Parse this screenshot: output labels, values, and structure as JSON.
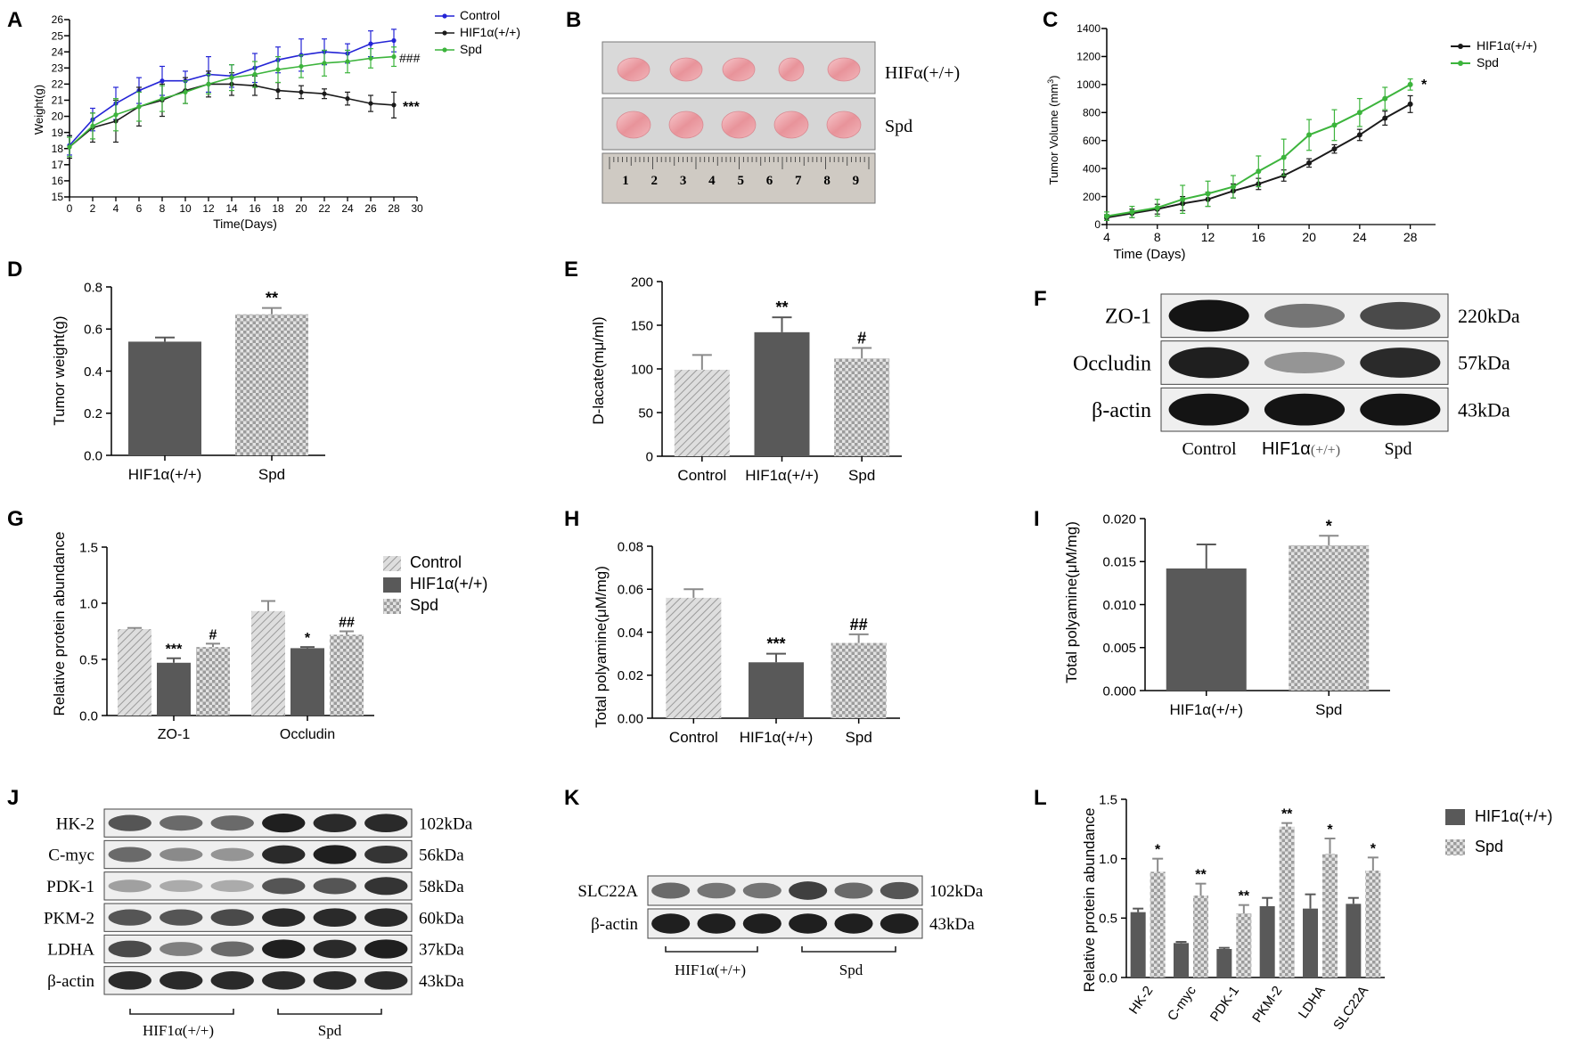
{
  "colors": {
    "blue": "#2424d6",
    "black": "#1a1a1a",
    "green": "#3cb43c",
    "dark_bar": "#595959",
    "light_bar": "#d0d0d0"
  },
  "panel_labels": {
    "A": "A",
    "B": "B",
    "C": "C",
    "D": "D",
    "E": "E",
    "F": "F",
    "G": "G",
    "H": "H",
    "I": "I",
    "J": "J",
    "K": "K",
    "L": "L"
  },
  "chart_data": [
    {
      "panel": "A",
      "type": "line",
      "title": "",
      "xlabel": "Time(Days)",
      "ylabel": "Weight(g)",
      "xlim": [
        0,
        30
      ],
      "ylim": [
        15,
        26
      ],
      "xticks": [
        "0",
        "2",
        "4",
        "6",
        "8",
        "10",
        "12",
        "14",
        "16",
        "18",
        "20",
        "22",
        "24",
        "26",
        "28",
        "30"
      ],
      "yticks": [
        "15",
        "16",
        "17",
        "18",
        "19",
        "20",
        "21",
        "22",
        "23",
        "24",
        "25",
        "26"
      ],
      "x": [
        0,
        2,
        4,
        6,
        8,
        10,
        12,
        14,
        16,
        18,
        20,
        22,
        24,
        26,
        28
      ],
      "series": [
        {
          "name": "Control",
          "color": "#2424d6",
          "values": [
            18.2,
            19.8,
            20.8,
            21.6,
            22.2,
            22.2,
            22.6,
            22.5,
            23.0,
            23.5,
            23.8,
            24.0,
            23.9,
            24.5,
            24.7
          ],
          "errors": [
            0.6,
            0.7,
            1.0,
            0.8,
            0.9,
            0.6,
            1.1,
            0.7,
            0.9,
            0.8,
            1.0,
            0.8,
            0.6,
            0.8,
            0.7
          ]
        },
        {
          "name": "HIF1α(+/+)",
          "color": "#1a1a1a",
          "values": [
            18.1,
            19.3,
            19.7,
            20.6,
            21.0,
            21.6,
            22.0,
            22.0,
            21.9,
            21.6,
            21.5,
            21.4,
            21.1,
            20.8,
            20.7
          ],
          "errors": [
            0.7,
            0.9,
            1.3,
            1.2,
            1.0,
            0.8,
            0.8,
            0.7,
            0.6,
            0.5,
            0.4,
            0.3,
            0.4,
            0.5,
            0.8
          ]
        },
        {
          "name": "Spd",
          "color": "#3cb43c",
          "values": [
            18.1,
            19.4,
            20.1,
            20.6,
            21.1,
            21.5,
            22.0,
            22.4,
            22.6,
            22.9,
            23.1,
            23.3,
            23.4,
            23.6,
            23.7
          ],
          "errors": [
            0.6,
            0.8,
            1.0,
            0.9,
            0.8,
            0.7,
            0.6,
            0.8,
            0.8,
            0.8,
            0.7,
            0.8,
            0.7,
            0.6,
            0.6
          ]
        }
      ],
      "annotations": [
        "###",
        "***"
      ]
    },
    {
      "panel": "C",
      "type": "line",
      "xlabel": "Time (Days)",
      "ylabel": "Tumor Volume (mm",
      "ylabel_sup": "3",
      "ylabel_end": ")",
      "xlim": [
        4,
        30
      ],
      "ylim": [
        0,
        1400
      ],
      "xticks": [
        "4",
        "8",
        "12",
        "16",
        "20",
        "24",
        "28"
      ],
      "yticks": [
        "0",
        "200",
        "400",
        "600",
        "800",
        "1000",
        "1200",
        "1400"
      ],
      "x": [
        4,
        6,
        8,
        10,
        12,
        14,
        16,
        18,
        20,
        22,
        24,
        26,
        28
      ],
      "series": [
        {
          "name": "HIF1α(+/+)",
          "color": "#1a1a1a",
          "values": [
            50,
            80,
            110,
            150,
            180,
            240,
            290,
            350,
            440,
            540,
            640,
            760,
            860
          ],
          "errors": [
            20,
            30,
            35,
            50,
            50,
            50,
            40,
            40,
            30,
            30,
            40,
            50,
            60
          ]
        },
        {
          "name": "Spd",
          "color": "#3cb43c",
          "values": [
            60,
            90,
            120,
            180,
            220,
            270,
            380,
            480,
            640,
            710,
            800,
            900,
            1000
          ],
          "errors": [
            30,
            40,
            60,
            100,
            90,
            80,
            110,
            130,
            110,
            110,
            100,
            80,
            40
          ]
        }
      ],
      "annotations": [
        "*"
      ]
    },
    {
      "panel": "D",
      "type": "bar",
      "ylabel": "Tumor weight(g)",
      "ylim": [
        0,
        0.8
      ],
      "yticks": [
        "0.0",
        "0.2",
        "0.4",
        "0.6",
        "0.8"
      ],
      "categories": [
        "HIF1α(+/+)",
        "Spd"
      ],
      "values": [
        0.54,
        0.67
      ],
      "errors": [
        0.02,
        0.03
      ],
      "annotations": [
        "",
        "**"
      ]
    },
    {
      "panel": "E",
      "type": "bar",
      "ylabel": "D-lacate(mμ/ml)",
      "ylim": [
        0,
        200
      ],
      "yticks": [
        "0",
        "50",
        "100",
        "150",
        "200"
      ],
      "categories": [
        "Control",
        "HIF1α(+/+)",
        "Spd"
      ],
      "values": [
        99,
        142,
        112
      ],
      "errors": [
        17,
        17,
        12
      ],
      "annotations": [
        "",
        "**",
        "#"
      ]
    },
    {
      "panel": "G",
      "type": "bar",
      "ylabel": "Relative protein abundance",
      "ylim": [
        0,
        1.5
      ],
      "yticks": [
        "0.0",
        "0.5",
        "1.0",
        "1.5"
      ],
      "categories": [
        "ZO-1",
        "Occludin"
      ],
      "legend": [
        "Control",
        "HIF1α(+/+)",
        "Spd"
      ],
      "series": [
        {
          "name": "Control",
          "values": [
            0.77,
            0.93
          ],
          "errors": [
            0.01,
            0.09
          ]
        },
        {
          "name": "HIF1α(+/+)",
          "values": [
            0.47,
            0.6
          ],
          "errors": [
            0.04,
            0.01
          ]
        },
        {
          "name": "Spd",
          "values": [
            0.61,
            0.72
          ],
          "errors": [
            0.03,
            0.03
          ]
        }
      ],
      "annotations": [
        [
          "",
          "***",
          "#"
        ],
        [
          "",
          "*",
          "##"
        ]
      ]
    },
    {
      "panel": "H",
      "type": "bar",
      "ylabel": "Total polyamine(μM/mg)",
      "ylim": [
        0,
        0.08
      ],
      "yticks": [
        "0.00",
        "0.02",
        "0.04",
        "0.06",
        "0.08"
      ],
      "categories": [
        "Control",
        "HIF1α(+/+)",
        "Spd"
      ],
      "values": [
        0.056,
        0.026,
        0.035
      ],
      "errors": [
        0.004,
        0.004,
        0.004
      ],
      "annotations": [
        "",
        "***",
        "##"
      ]
    },
    {
      "panel": "I",
      "type": "bar",
      "ylabel": "Total polyamine(μM/mg)",
      "ylim": [
        0,
        0.02
      ],
      "yticks": [
        "0.000",
        "0.005",
        "0.010",
        "0.015",
        "0.020"
      ],
      "categories": [
        "HIF1α(+/+)",
        "Spd"
      ],
      "values": [
        0.0142,
        0.0169
      ],
      "errors": [
        0.0028,
        0.0011
      ],
      "annotations": [
        "",
        "*"
      ]
    },
    {
      "panel": "L",
      "type": "bar",
      "ylabel": "Relative protein abundance",
      "ylim": [
        0,
        1.5
      ],
      "yticks": [
        "0.0",
        "0.5",
        "1.0",
        "1.5"
      ],
      "categories": [
        "HK-2",
        "C-myc",
        "PDK-1",
        "PKM-2",
        "LDHA",
        "SLC22A"
      ],
      "legend": [
        "HIF1α(+/+)",
        "Spd"
      ],
      "series": [
        {
          "name": "HIF1α(+/+)",
          "values": [
            0.55,
            0.29,
            0.24,
            0.6,
            0.58,
            0.62
          ],
          "errors": [
            0.03,
            0.01,
            0.01,
            0.07,
            0.12,
            0.05
          ]
        },
        {
          "name": "Spd",
          "values": [
            0.89,
            0.69,
            0.54,
            1.27,
            1.04,
            0.9
          ],
          "errors": [
            0.11,
            0.1,
            0.07,
            0.03,
            0.13,
            0.11
          ]
        }
      ],
      "annotations": [
        "*",
        "**",
        "**",
        "**",
        "*",
        "*"
      ]
    }
  ],
  "blots": {
    "B": {
      "rows": [
        "HIFα(+/+)",
        "Spd"
      ],
      "ruler_numbers": [
        "1",
        "2",
        "3",
        "4",
        "5",
        "6",
        "7",
        "8",
        "9"
      ]
    },
    "F": {
      "rows": [
        {
          "label": "ZO-1",
          "kda": "220kDa",
          "intensity": [
            1.0,
            0.55,
            0.75
          ]
        },
        {
          "label": "Occludin",
          "kda": "57kDa",
          "intensity": [
            0.95,
            0.4,
            0.9
          ]
        },
        {
          "label": "β-actin",
          "kda": "43kDa",
          "intensity": [
            1.0,
            1.0,
            1.0
          ]
        }
      ],
      "lanes_label_1": "Control",
      "lanes_label_2a": "HIF1α",
      "lanes_label_2b": "(+/+)",
      "lanes_label_3": "Spd"
    },
    "J": {
      "rows": [
        {
          "label": "HK-2",
          "kda": "102kDa",
          "intensity": [
            0.7,
            0.6,
            0.6,
            0.95,
            0.9,
            0.9
          ]
        },
        {
          "label": "C-myc",
          "kda": "56kDa",
          "intensity": [
            0.6,
            0.45,
            0.4,
            0.9,
            0.95,
            0.85
          ]
        },
        {
          "label": "PDK-1",
          "kda": "58kDa",
          "intensity": [
            0.35,
            0.3,
            0.3,
            0.7,
            0.7,
            0.85
          ]
        },
        {
          "label": "PKM-2",
          "kda": "60kDa",
          "intensity": [
            0.7,
            0.7,
            0.75,
            0.9,
            0.9,
            0.9
          ]
        },
        {
          "label": "LDHA",
          "kda": "37kDa",
          "intensity": [
            0.75,
            0.5,
            0.6,
            0.95,
            0.9,
            0.95
          ]
        },
        {
          "label": "β-actin",
          "kda": "43kDa",
          "intensity": [
            0.9,
            0.9,
            0.9,
            0.9,
            0.9,
            0.9
          ]
        }
      ],
      "group1": "HIF1α(+/+)",
      "group2": "Spd"
    },
    "K": {
      "rows": [
        {
          "label": "SLC22A",
          "kda": "102kDa",
          "intensity": [
            0.6,
            0.55,
            0.55,
            0.8,
            0.6,
            0.7
          ]
        },
        {
          "label": "β-actin",
          "kda": "43kDa",
          "intensity": [
            0.95,
            0.95,
            0.95,
            0.95,
            0.95,
            0.95
          ]
        }
      ],
      "group1": "HIF1α(+/+)",
      "group2": "Spd"
    }
  }
}
